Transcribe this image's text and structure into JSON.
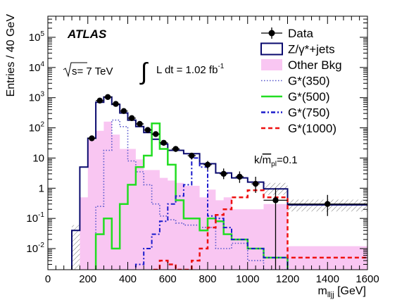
{
  "chart_data": {
    "type": "histogram",
    "xlabel": "m",
    "xlabel_subscript": "lljj",
    "xlabel_unit": " [GeV]",
    "ylabel": "Entries / 40 GeV",
    "xlim": [
      0,
      1600
    ],
    "ylim": [
      0.002,
      500000
    ],
    "yscale": "log",
    "grid": false,
    "legend_position": "top-right",
    "x_ticks": [
      0,
      200,
      400,
      600,
      800,
      1000,
      1200,
      1400,
      1600
    ],
    "y_ticks": [
      {
        "value": 0.01,
        "base": "10",
        "exp": "-2"
      },
      {
        "value": 0.1,
        "base": "10",
        "exp": "-1"
      },
      {
        "value": 1,
        "base": "1",
        "exp": ""
      },
      {
        "value": 10,
        "base": "10",
        "exp": ""
      },
      {
        "value": 100,
        "base": "10",
        "exp": "2"
      },
      {
        "value": 1000,
        "base": "10",
        "exp": "3"
      },
      {
        "value": 10000,
        "base": "10",
        "exp": "4"
      },
      {
        "value": 100000,
        "base": "10",
        "exp": "5"
      }
    ],
    "annotations": {
      "experiment": "ATLAS",
      "energy_prefix": "s",
      "energy_value": "= 7 TeV",
      "lumi_integral": "∫",
      "lumi_text": "L dt = 1.02 fb",
      "lumi_exp": "-1",
      "coupling_prefix": "k/",
      "coupling_m": "m",
      "coupling_sub": "pl",
      "coupling_value": "=0.1"
    },
    "legend": [
      {
        "key": "data",
        "label": "Data",
        "style": "marker"
      },
      {
        "key": "zjets",
        "label": "Z/γ*+jets",
        "style": "box-outline",
        "color": "#0a0a6e"
      },
      {
        "key": "other",
        "label": "Other Bkg",
        "style": "box-fill",
        "color": "#f9c6f2"
      },
      {
        "key": "g350",
        "label": "G*(350)",
        "style": "dotted",
        "color": "#5555cc"
      },
      {
        "key": "g500",
        "label": "G*(500)",
        "style": "solid",
        "color": "#22dd22"
      },
      {
        "key": "g750",
        "label": "G*(750)",
        "style": "dashdot",
        "color": "#1a1acc"
      },
      {
        "key": "g1000",
        "label": "G*(1000)",
        "style": "dashed",
        "color": "#ee1111"
      }
    ],
    "series": [
      {
        "key": "zjets",
        "bins": [
          [
            0,
            40,
            0
          ],
          [
            40,
            80,
            0
          ],
          [
            80,
            120,
            0
          ],
          [
            120,
            160,
            0.04
          ],
          [
            160,
            200,
            5
          ],
          [
            200,
            240,
            45
          ],
          [
            240,
            280,
            700
          ],
          [
            280,
            320,
            1050
          ],
          [
            320,
            360,
            600
          ],
          [
            360,
            400,
            310
          ],
          [
            400,
            440,
            180
          ],
          [
            440,
            480,
            110
          ],
          [
            480,
            520,
            70
          ],
          [
            520,
            560,
            42
          ],
          [
            560,
            600,
            29
          ],
          [
            600,
            680,
            18
          ],
          [
            680,
            760,
            14
          ],
          [
            760,
            840,
            6.5
          ],
          [
            840,
            920,
            3.2
          ],
          [
            920,
            1000,
            2.2
          ],
          [
            1000,
            1080,
            1.6
          ],
          [
            1080,
            1200,
            0.95
          ],
          [
            1200,
            1600,
            0.28
          ]
        ]
      },
      {
        "key": "other",
        "bins": [
          [
            0,
            40,
            0
          ],
          [
            40,
            80,
            0
          ],
          [
            80,
            120,
            0
          ],
          [
            120,
            160,
            0
          ],
          [
            160,
            200,
            0.5
          ],
          [
            200,
            240,
            40
          ],
          [
            240,
            280,
            80
          ],
          [
            280,
            320,
            160
          ],
          [
            320,
            360,
            60
          ],
          [
            360,
            400,
            20
          ],
          [
            400,
            440,
            20
          ],
          [
            440,
            480,
            9
          ],
          [
            480,
            520,
            4
          ],
          [
            520,
            560,
            4
          ],
          [
            560,
            600,
            2.2
          ],
          [
            600,
            640,
            1.8
          ],
          [
            640,
            680,
            1.5
          ],
          [
            680,
            720,
            1.2
          ],
          [
            720,
            760,
            1.2
          ],
          [
            760,
            800,
            0.5
          ],
          [
            800,
            840,
            0.9
          ],
          [
            840,
            880,
            0.4
          ],
          [
            880,
            920,
            0.5
          ],
          [
            920,
            1000,
            0.2
          ],
          [
            1000,
            1080,
            0.2
          ],
          [
            1080,
            1200,
            0.3
          ],
          [
            1200,
            1600,
            0.012
          ]
        ]
      },
      {
        "key": "g350",
        "bins": [
          [
            0,
            40,
            0
          ],
          [
            40,
            80,
            0
          ],
          [
            80,
            120,
            0
          ],
          [
            120,
            160,
            0
          ],
          [
            160,
            200,
            0
          ],
          [
            200,
            240,
            0
          ],
          [
            240,
            280,
            0.25
          ],
          [
            280,
            320,
            18
          ],
          [
            320,
            360,
            180
          ],
          [
            360,
            400,
            110
          ],
          [
            400,
            440,
            8
          ],
          [
            440,
            480,
            3.5
          ],
          [
            480,
            520,
            1.3
          ],
          [
            520,
            560,
            0.3
          ],
          [
            560,
            600,
            0.12
          ],
          [
            600,
            640,
            0.09
          ],
          [
            640,
            680,
            0.07
          ],
          [
            680,
            760,
            0.06
          ],
          [
            760,
            840,
            0.05
          ],
          [
            840,
            920,
            0.01
          ],
          [
            920,
            1000,
            0.015
          ],
          [
            1000,
            1080,
            0.004
          ],
          [
            1080,
            1200,
            0.002
          ],
          [
            1200,
            1600,
            0.001
          ]
        ]
      },
      {
        "key": "g500",
        "bins": [
          [
            0,
            40,
            0
          ],
          [
            40,
            80,
            0
          ],
          [
            80,
            120,
            0
          ],
          [
            120,
            160,
            0
          ],
          [
            160,
            200,
            0
          ],
          [
            200,
            240,
            0.001
          ],
          [
            240,
            280,
            0.03
          ],
          [
            280,
            320,
            0.1
          ],
          [
            320,
            360,
            0.01
          ],
          [
            360,
            400,
            0.3
          ],
          [
            400,
            440,
            1.3
          ],
          [
            440,
            480,
            5
          ],
          [
            480,
            520,
            12
          ],
          [
            520,
            560,
            140
          ],
          [
            560,
            600,
            20
          ],
          [
            600,
            640,
            6
          ],
          [
            640,
            680,
            0.4
          ],
          [
            680,
            720,
            0.1
          ],
          [
            720,
            760,
            0.1
          ],
          [
            760,
            800,
            0.04
          ],
          [
            800,
            840,
            0.1
          ],
          [
            840,
            880,
            0.08
          ],
          [
            880,
            920,
            0.03
          ],
          [
            920,
            1000,
            0.02
          ],
          [
            1000,
            1080,
            0.01
          ],
          [
            1080,
            1200,
            0.005
          ],
          [
            1200,
            1600,
            0.001
          ]
        ]
      },
      {
        "key": "g750",
        "bins": [
          [
            0,
            40,
            0
          ],
          [
            40,
            80,
            0
          ],
          [
            80,
            120,
            0
          ],
          [
            120,
            160,
            0
          ],
          [
            160,
            200,
            0
          ],
          [
            200,
            240,
            0
          ],
          [
            240,
            280,
            0
          ],
          [
            280,
            320,
            0
          ],
          [
            320,
            360,
            0.001
          ],
          [
            360,
            400,
            0.001
          ],
          [
            400,
            440,
            0.001
          ],
          [
            440,
            480,
            0.003
          ],
          [
            480,
            520,
            0.01
          ],
          [
            520,
            560,
            0.03
          ],
          [
            560,
            600,
            0.08
          ],
          [
            600,
            640,
            0.3
          ],
          [
            640,
            680,
            0.55
          ],
          [
            680,
            720,
            1.3
          ],
          [
            720,
            760,
            10
          ],
          [
            760,
            800,
            5
          ],
          [
            800,
            840,
            0.12
          ],
          [
            840,
            880,
            0.1
          ],
          [
            880,
            920,
            0.05
          ],
          [
            920,
            1000,
            0.02
          ],
          [
            1000,
            1080,
            0.01
          ],
          [
            1080,
            1200,
            0.005
          ],
          [
            1200,
            1600,
            0.001
          ]
        ]
      },
      {
        "key": "g1000",
        "bins": [
          [
            0,
            40,
            0
          ],
          [
            40,
            80,
            0
          ],
          [
            80,
            120,
            0
          ],
          [
            120,
            160,
            0
          ],
          [
            160,
            200,
            0
          ],
          [
            200,
            240,
            0
          ],
          [
            240,
            280,
            0
          ],
          [
            280,
            320,
            0
          ],
          [
            320,
            360,
            0
          ],
          [
            360,
            400,
            0
          ],
          [
            400,
            440,
            0
          ],
          [
            440,
            480,
            0
          ],
          [
            480,
            520,
            0
          ],
          [
            520,
            560,
            0.002
          ],
          [
            560,
            600,
            0.004
          ],
          [
            600,
            640,
            0.003
          ],
          [
            640,
            680,
            0.002
          ],
          [
            680,
            720,
            0.002
          ],
          [
            720,
            760,
            0.004
          ],
          [
            760,
            800,
            0.01
          ],
          [
            800,
            840,
            0.05
          ],
          [
            840,
            880,
            0.13
          ],
          [
            880,
            920,
            0.2
          ],
          [
            920,
            1000,
            0.5
          ],
          [
            1000,
            1080,
            0.85
          ],
          [
            1080,
            1200,
            0.5
          ],
          [
            1200,
            1600,
            0.005
          ]
        ]
      },
      {
        "key": "data",
        "points": [
          {
            "x": 220,
            "y": 45,
            "lo": 38,
            "hi": 53
          },
          {
            "x": 260,
            "y": 800,
            "lo": 770,
            "hi": 830
          },
          {
            "x": 300,
            "y": 1050,
            "lo": 1015,
            "hi": 1085
          },
          {
            "x": 340,
            "y": 620,
            "lo": 595,
            "hi": 645
          },
          {
            "x": 380,
            "y": 360,
            "lo": 342,
            "hi": 378
          },
          {
            "x": 420,
            "y": 210,
            "lo": 196,
            "hi": 224
          },
          {
            "x": 460,
            "y": 135,
            "lo": 124,
            "hi": 146
          },
          {
            "x": 500,
            "y": 85,
            "lo": 76,
            "hi": 94
          },
          {
            "x": 540,
            "y": 62,
            "lo": 54,
            "hi": 70
          },
          {
            "x": 580,
            "y": 32,
            "lo": 27,
            "hi": 38
          },
          {
            "x": 640,
            "y": 20,
            "lo": 16,
            "hi": 25
          },
          {
            "x": 720,
            "y": 12,
            "lo": 9,
            "hi": 15
          },
          {
            "x": 800,
            "y": 6,
            "lo": 4,
            "hi": 8
          },
          {
            "x": 880,
            "y": 3,
            "lo": 2,
            "hi": 4.5
          },
          {
            "x": 960,
            "y": 2.4,
            "lo": 1.5,
            "hi": 3.6
          },
          {
            "x": 1040,
            "y": 1.4,
            "lo": 0.7,
            "hi": 2.4
          },
          {
            "x": 1140,
            "y": 0.4,
            "lo": 0.001,
            "hi": 1.0,
            "xerr": 60
          },
          {
            "x": 1400,
            "y": 0.3,
            "lo": 0.12,
            "hi": 0.6,
            "xerr": 200
          }
        ]
      }
    ],
    "uncertainty_band": [
      [
        120,
        160,
        0.002,
        0.06
      ],
      [
        1080,
        1200,
        0.6,
        1.5
      ],
      [
        1200,
        1600,
        0.17,
        0.42
      ]
    ]
  }
}
